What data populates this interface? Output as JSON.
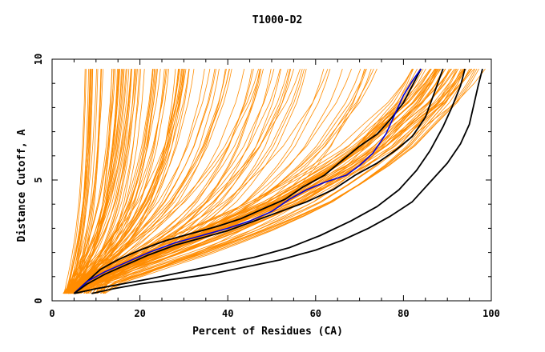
{
  "chart_data": {
    "type": "line",
    "title": "T1000-D2",
    "xlabel": "Percent of Residues (CA)",
    "ylabel": "Distance Cutoff, A",
    "xlim": [
      0,
      100
    ],
    "ylim": [
      0,
      10
    ],
    "xticks": [
      0,
      20,
      40,
      60,
      80,
      100
    ],
    "yticks": [
      0,
      5,
      10
    ],
    "grid": false,
    "colors": {
      "background": "#ffffff",
      "axis": "#000000",
      "models": "#ff8c00",
      "highlight_black": "#000000",
      "highlight_blue": "#0000dd"
    },
    "series": [
      {
        "name": "black-curve-1",
        "color": "#000000",
        "x": [
          5,
          8,
          11,
          15,
          20,
          26,
          32,
          38,
          43,
          48,
          53,
          57,
          62,
          66,
          70,
          74,
          77,
          80,
          82,
          84
        ],
        "y": [
          0.3,
          0.8,
          1.3,
          1.7,
          2.1,
          2.5,
          2.8,
          3.1,
          3.4,
          3.8,
          4.2,
          4.7,
          5.2,
          5.8,
          6.4,
          6.9,
          7.5,
          8.2,
          8.9,
          9.6
        ]
      },
      {
        "name": "blue-curve",
        "color": "#0000dd",
        "x": [
          5,
          8,
          12,
          17,
          22,
          28,
          34,
          40,
          45,
          50,
          54,
          58,
          62,
          67,
          70,
          73,
          76,
          78,
          80,
          82,
          84
        ],
        "y": [
          0.3,
          0.8,
          1.2,
          1.6,
          2.0,
          2.4,
          2.7,
          3.0,
          3.3,
          3.7,
          4.2,
          4.6,
          4.9,
          5.2,
          5.6,
          6.1,
          6.9,
          7.7,
          8.5,
          9.1,
          9.6
        ]
      },
      {
        "name": "black-curve-2",
        "color": "#000000",
        "x": [
          5,
          8,
          12,
          17,
          22,
          28,
          34,
          40,
          46,
          52,
          58,
          64,
          69,
          74,
          78,
          82,
          85,
          87,
          89
        ],
        "y": [
          0.3,
          0.7,
          1.1,
          1.5,
          1.9,
          2.3,
          2.6,
          2.9,
          3.3,
          3.7,
          4.1,
          4.6,
          5.2,
          5.7,
          6.2,
          6.8,
          7.6,
          8.6,
          9.6
        ]
      },
      {
        "name": "black-curve-3",
        "color": "#000000",
        "x": [
          5,
          10,
          16,
          22,
          30,
          38,
          46,
          54,
          61,
          68,
          74,
          79,
          83,
          86,
          89,
          91,
          93,
          94
        ],
        "y": [
          0.3,
          0.5,
          0.7,
          0.9,
          1.2,
          1.5,
          1.8,
          2.2,
          2.7,
          3.3,
          3.9,
          4.6,
          5.4,
          6.2,
          7.2,
          8.0,
          8.9,
          9.6
        ]
      },
      {
        "name": "black-curve-4",
        "color": "#000000",
        "x": [
          9,
          14,
          20,
          28,
          36,
          44,
          52,
          60,
          66,
          72,
          77,
          82,
          86,
          90,
          93,
          95,
          96,
          97,
          98
        ],
        "y": [
          0.3,
          0.5,
          0.7,
          0.9,
          1.1,
          1.4,
          1.7,
          2.1,
          2.5,
          3.0,
          3.5,
          4.1,
          4.9,
          5.7,
          6.5,
          7.3,
          8.1,
          8.9,
          9.6
        ]
      }
    ]
  }
}
